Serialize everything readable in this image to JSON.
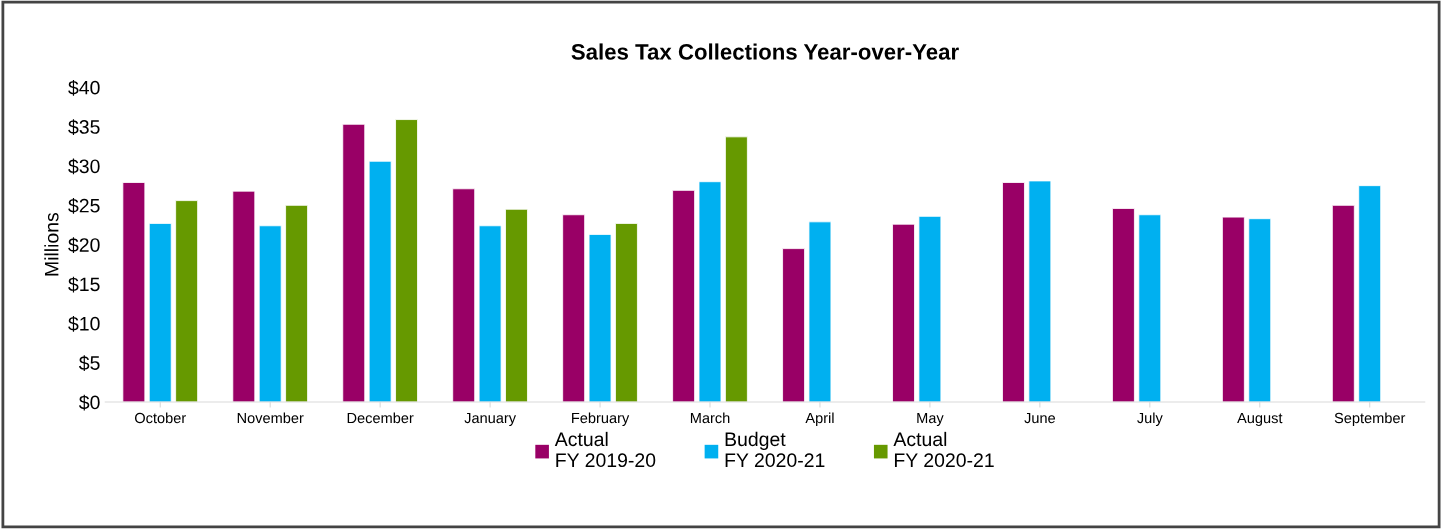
{
  "chart_data": {
    "type": "bar",
    "title": "Sales Tax Collections Year-over-Year",
    "ylabel": "Millions",
    "categories": [
      "October",
      "November",
      "December",
      "January",
      "February",
      "March",
      "April",
      "May",
      "June",
      "July",
      "August",
      "September"
    ],
    "series": [
      {
        "name": "Actual\nFY 2019-20",
        "color": "#990066",
        "values": [
          27.9,
          26.8,
          35.3,
          27.1,
          23.8,
          26.9,
          19.5,
          22.6,
          27.9,
          24.6,
          23.5,
          25.0
        ]
      },
      {
        "name": "Budget\nFY 2020-21",
        "color": "#00b0f0",
        "values": [
          22.7,
          22.4,
          30.6,
          22.4,
          21.3,
          28.0,
          22.9,
          23.6,
          28.1,
          23.8,
          23.3,
          27.5
        ]
      },
      {
        "name": "Actual\nFY 2020-21",
        "color": "#669900",
        "values": [
          25.6,
          25.0,
          35.9,
          24.5,
          22.7,
          33.7,
          null,
          null,
          null,
          null,
          null,
          null
        ]
      }
    ],
    "ylim": [
      0,
      40
    ],
    "yticks": [
      {
        "value": 0,
        "label": "$0"
      },
      {
        "value": 5,
        "label": "$5"
      },
      {
        "value": 10,
        "label": "$10"
      },
      {
        "value": 15,
        "label": "$15"
      },
      {
        "value": 20,
        "label": "$20"
      },
      {
        "value": 25,
        "label": "$25"
      },
      {
        "value": 30,
        "label": "$30"
      },
      {
        "value": 35,
        "label": "$35"
      },
      {
        "value": 40,
        "label": "$40"
      }
    ],
    "grid": false,
    "legend": "bottom"
  }
}
